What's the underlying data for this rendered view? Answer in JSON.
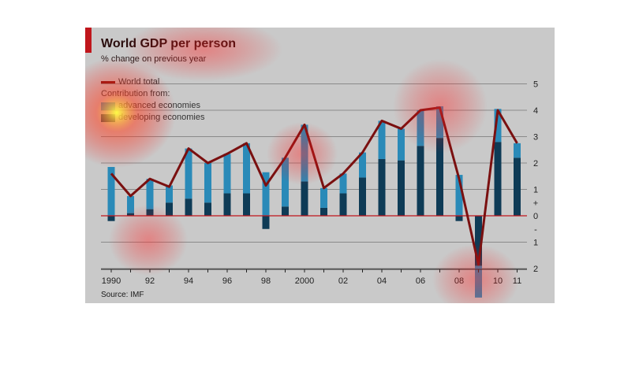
{
  "header": {
    "title": "World GDP per person",
    "subtitle": "% change on previous year",
    "source": "Source: IMF"
  },
  "legend": {
    "world_total": "World total",
    "contribution_from": "Contribution from:",
    "advanced": "advanced economies",
    "developing": "developing economies"
  },
  "colors": {
    "accent": "#c0161c",
    "world_line": "#7a1010",
    "advanced": "#2a8ab8",
    "developing": "#0e3b56",
    "panel_bg": "#c9c9c9",
    "zero_line": "#c0161c"
  },
  "chart_data": {
    "type": "bar",
    "years": [
      1990,
      1991,
      1992,
      1993,
      1994,
      1995,
      1996,
      1997,
      1998,
      1999,
      2000,
      2001,
      2002,
      2003,
      2004,
      2005,
      2006,
      2007,
      2008,
      2009,
      2010,
      2011
    ],
    "x_tick_labels": [
      "1990",
      "92",
      "94",
      "96",
      "98",
      "2000",
      "02",
      "04",
      "06",
      "08",
      "10",
      "11"
    ],
    "x_tick_years": [
      1990,
      1992,
      1994,
      1996,
      1998,
      2000,
      2002,
      2004,
      2006,
      2008,
      2010,
      2011
    ],
    "series": [
      {
        "name": "developing economies",
        "values": [
          -0.2,
          0.1,
          0.25,
          0.5,
          0.65,
          0.5,
          0.85,
          0.85,
          -0.5,
          0.35,
          1.3,
          0.3,
          0.85,
          1.45,
          2.15,
          2.1,
          2.65,
          2.95,
          -0.2,
          -1.9,
          2.8,
          2.2
        ]
      },
      {
        "name": "advanced economies",
        "values": [
          1.85,
          0.65,
          1.15,
          0.65,
          1.9,
          1.5,
          1.5,
          1.9,
          1.65,
          1.85,
          2.15,
          0.75,
          0.75,
          0.95,
          1.45,
          1.2,
          1.35,
          1.2,
          1.55,
          -1.2,
          1.25,
          0.55
        ]
      },
      {
        "name": "World total",
        "values": [
          1.6,
          0.75,
          1.4,
          1.1,
          2.55,
          2.0,
          2.35,
          2.75,
          1.15,
          2.2,
          3.45,
          1.05,
          1.6,
          2.4,
          3.6,
          3.3,
          4.0,
          4.1,
          1.4,
          -1.85,
          4.0,
          2.75
        ]
      }
    ],
    "y_tick_labels": [
      "5",
      "4",
      "3",
      "2",
      "1",
      "+",
      "0",
      "-",
      "1",
      "2"
    ],
    "ylim": [
      -2,
      5
    ],
    "xlabel": "",
    "ylabel": ""
  }
}
